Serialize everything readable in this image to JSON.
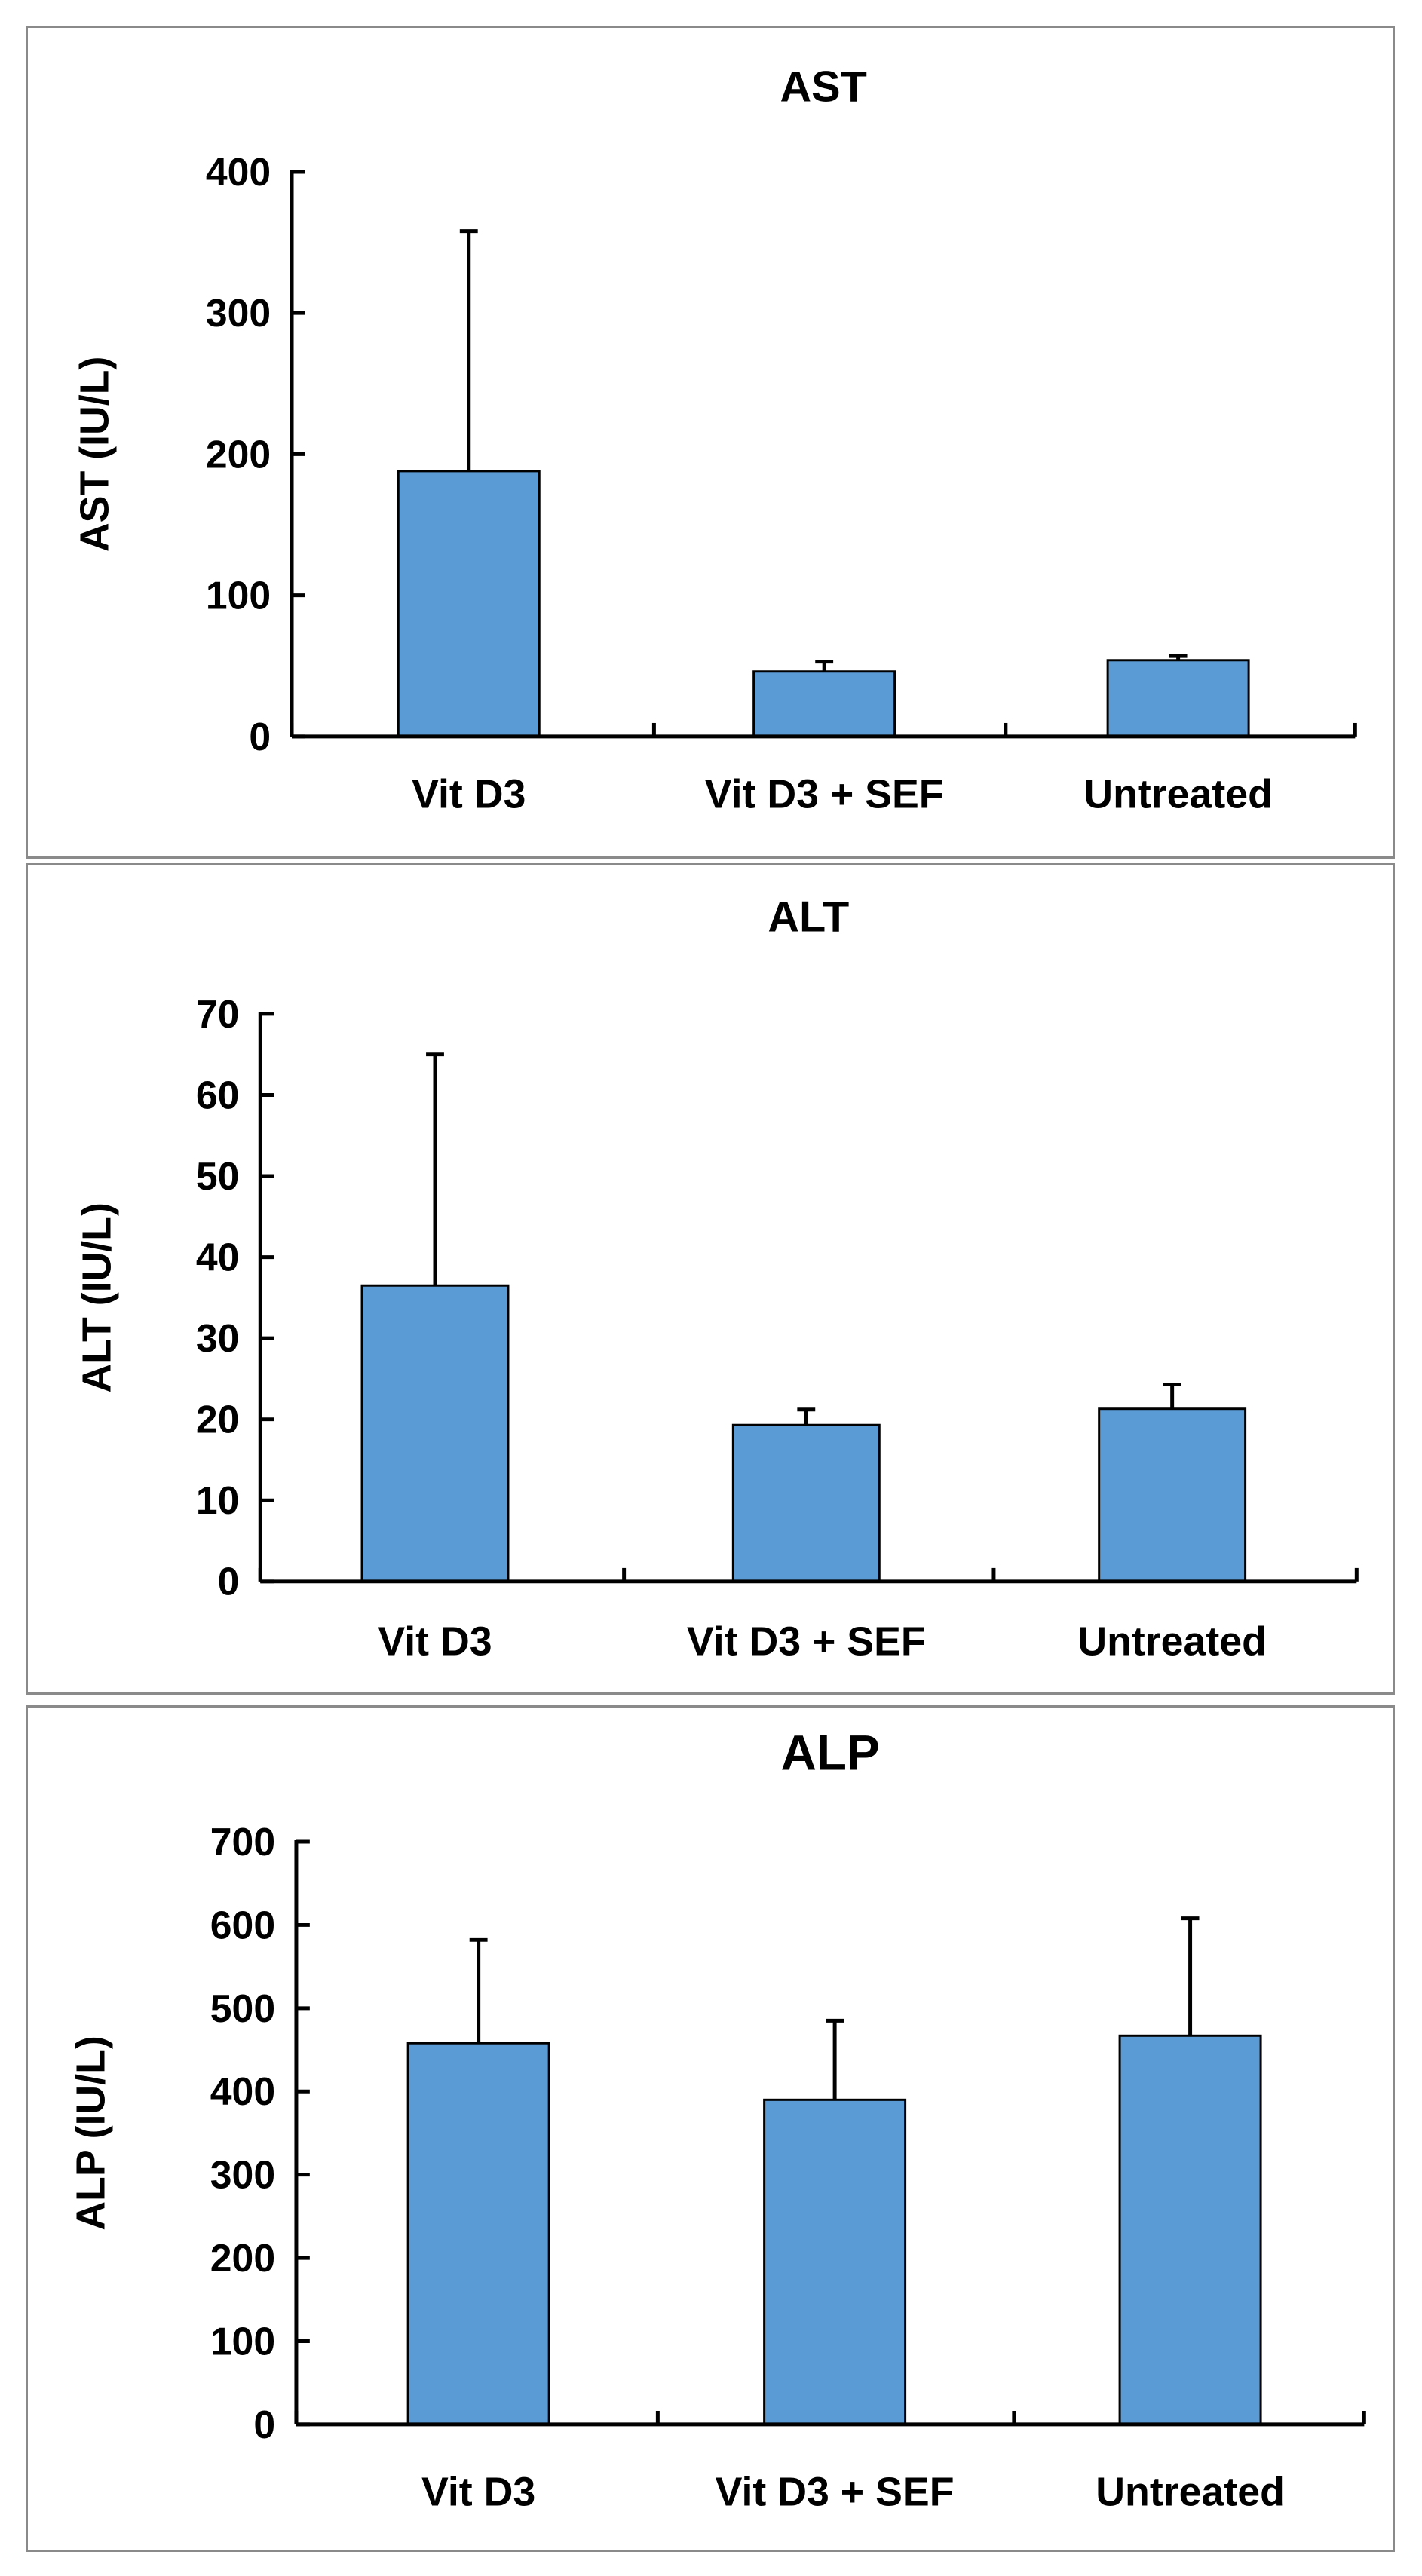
{
  "chart_data": [
    {
      "type": "bar",
      "title": "AST",
      "ylabel": "AST (IU/L)",
      "xlabel": "",
      "categories": [
        "Vit D3",
        "Vit D3 + SEF",
        "Untreated"
      ],
      "values": [
        188,
        46,
        54
      ],
      "error_upper": [
        358,
        53,
        57
      ],
      "ylim": [
        0,
        400
      ],
      "yticks": [
        0,
        100,
        200,
        300,
        400
      ],
      "grid": false,
      "bar_color": "#5b9bd5"
    },
    {
      "type": "bar",
      "title": "ALT",
      "ylabel": "ALT (IU/L)",
      "xlabel": "",
      "categories": [
        "Vit D3",
        "Vit D3 + SEF",
        "Untreated"
      ],
      "values": [
        36.5,
        19.3,
        21.3
      ],
      "error_upper": [
        65,
        21.2,
        24.3
      ],
      "ylim": [
        0,
        70
      ],
      "yticks": [
        0,
        10,
        20,
        30,
        40,
        50,
        60,
        70
      ],
      "grid": false,
      "bar_color": "#5b9bd5"
    },
    {
      "type": "bar",
      "title": "ALP",
      "ylabel": "ALP (IU/L)",
      "xlabel": "",
      "categories": [
        "Vit D3",
        "Vit D3 + SEF",
        "Untreated"
      ],
      "values": [
        458,
        390,
        467
      ],
      "error_upper": [
        582,
        485,
        608
      ],
      "ylim": [
        0,
        700
      ],
      "yticks": [
        0,
        100,
        200,
        300,
        400,
        500,
        600,
        700
      ],
      "grid": false,
      "bar_color": "#5b9bd5"
    }
  ]
}
